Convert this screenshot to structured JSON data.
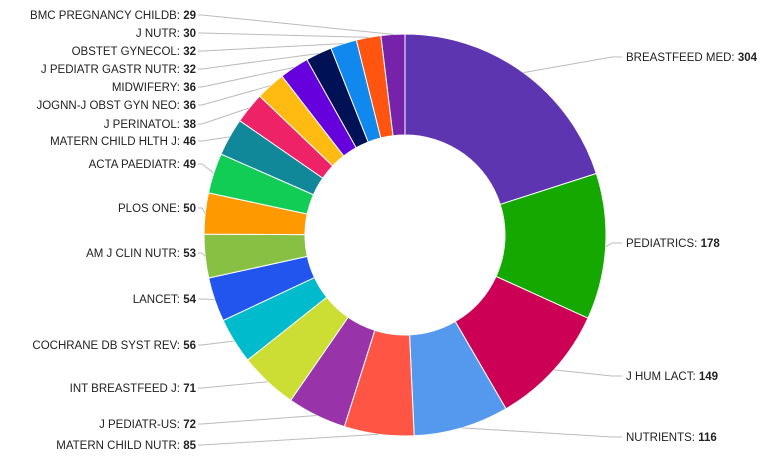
{
  "chart_data": {
    "type": "pie",
    "donut": true,
    "title": "",
    "legend": "none",
    "slices": [
      {
        "label": "BREASTFEED MED",
        "value": 304,
        "color": "#5E35B1"
      },
      {
        "label": "PEDIATRICS",
        "value": 178,
        "color": "#14A800"
      },
      {
        "label": "J HUM LACT",
        "value": 149,
        "color": "#CC0055"
      },
      {
        "label": "NUTRIENTS",
        "value": 116,
        "color": "#5599EE"
      },
      {
        "label": "MATERN CHILD NUTR",
        "value": 85,
        "color": "#FF5544"
      },
      {
        "label": "J PEDIATR-US",
        "value": 72,
        "color": "#9933AA"
      },
      {
        "label": "INT BREASTFEED J",
        "value": 71,
        "color": "#CCDD33"
      },
      {
        "label": "COCHRANE DB SYST REV",
        "value": 56,
        "color": "#00BBCC"
      },
      {
        "label": "LANCET",
        "value": 54,
        "color": "#2255EE"
      },
      {
        "label": "AM J CLIN NUTR",
        "value": 53,
        "color": "#88C044"
      },
      {
        "label": "PLOS ONE",
        "value": 50,
        "color": "#FF9900"
      },
      {
        "label": "ACTA PAEDIATR",
        "value": 49,
        "color": "#11CC55"
      },
      {
        "label": "MATERN CHILD HLTH J",
        "value": 46,
        "color": "#118899"
      },
      {
        "label": "J PERINATOL",
        "value": 38,
        "color": "#EE2266"
      },
      {
        "label": "JOGNN-J OBST GYN NEO",
        "value": 36,
        "color": "#FFBB11"
      },
      {
        "label": "MIDWIFERY",
        "value": 36,
        "color": "#6600DD"
      },
      {
        "label": "J PEDIATR GASTR NUTR",
        "value": 32,
        "color": "#001155"
      },
      {
        "label": "OBSTET GYNECOL",
        "value": 32,
        "color": "#1188EE"
      },
      {
        "label": "J NUTR",
        "value": 30,
        "color": "#FF5511"
      },
      {
        "label": "BMC PREGNANCY CHILDB",
        "value": 29,
        "color": "#7722AA"
      }
    ]
  }
}
